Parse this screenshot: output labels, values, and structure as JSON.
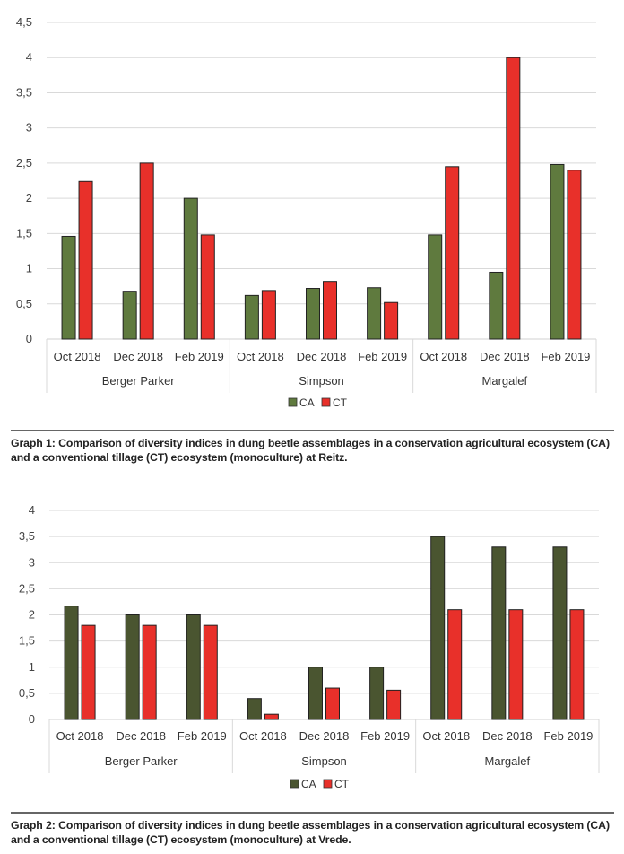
{
  "chart_data": [
    {
      "type": "bar",
      "title": "",
      "xlabel": "",
      "ylabel": "",
      "ylim": [
        0,
        4.5
      ],
      "yticks": [
        "0",
        "0,5",
        "1",
        "1,5",
        "2",
        "2,5",
        "3",
        "3,5",
        "4",
        "4,5"
      ],
      "grid": true,
      "legend": "bottom",
      "groups": [
        "Berger Parker",
        "Simpson",
        "Margalef"
      ],
      "categories": [
        "Oct 2018",
        "Dec 2018",
        "Feb 2019",
        "Oct 2018",
        "Dec 2018",
        "Feb 2019",
        "Oct 2018",
        "Dec 2018",
        "Feb 2019"
      ],
      "series": [
        {
          "name": "CA",
          "color": "#5f7a3e",
          "values": [
            1.46,
            0.68,
            2.0,
            0.62,
            0.72,
            0.73,
            1.48,
            0.95,
            2.48
          ]
        },
        {
          "name": "CT",
          "color": "#e8302a",
          "values": [
            2.24,
            2.5,
            1.48,
            0.69,
            0.82,
            0.52,
            2.45,
            4.0,
            2.4
          ]
        }
      ],
      "caption": "Graph 1: Comparison of diversity indices in dung beetle assemblages in a conservation agricultural ecosystem (CA) and a conventional tillage (CT) ecosystem (monoculture) at Reitz."
    },
    {
      "type": "bar",
      "title": "",
      "xlabel": "",
      "ylabel": "",
      "ylim": [
        0,
        4
      ],
      "yticks": [
        "0",
        "0,5",
        "1",
        "1,5",
        "2",
        "2,5",
        "3",
        "3,5",
        "4"
      ],
      "grid": true,
      "legend": "bottom",
      "groups": [
        "Berger Parker",
        "Simpson",
        "Margalef"
      ],
      "categories": [
        "Oct 2018",
        "Dec 2018",
        "Feb 2019",
        "Oct 2018",
        "Dec 2018",
        "Feb 2019",
        "Oct 2018",
        "Dec 2018",
        "Feb 2019"
      ],
      "series": [
        {
          "name": "CA",
          "color": "#4a5530",
          "values": [
            2.17,
            2.0,
            2.0,
            0.4,
            1.0,
            1.0,
            3.5,
            3.3,
            3.3
          ]
        },
        {
          "name": "CT",
          "color": "#e8302a",
          "values": [
            1.8,
            1.8,
            1.8,
            0.1,
            0.6,
            0.56,
            2.1,
            2.1,
            2.1
          ]
        }
      ],
      "caption": "Graph 2: Comparison of diversity indices in dung beetle assemblages in a conservation agricultural ecosystem (CA) and a conventional tillage (CT) ecosystem (monoculture) at Vrede."
    }
  ]
}
